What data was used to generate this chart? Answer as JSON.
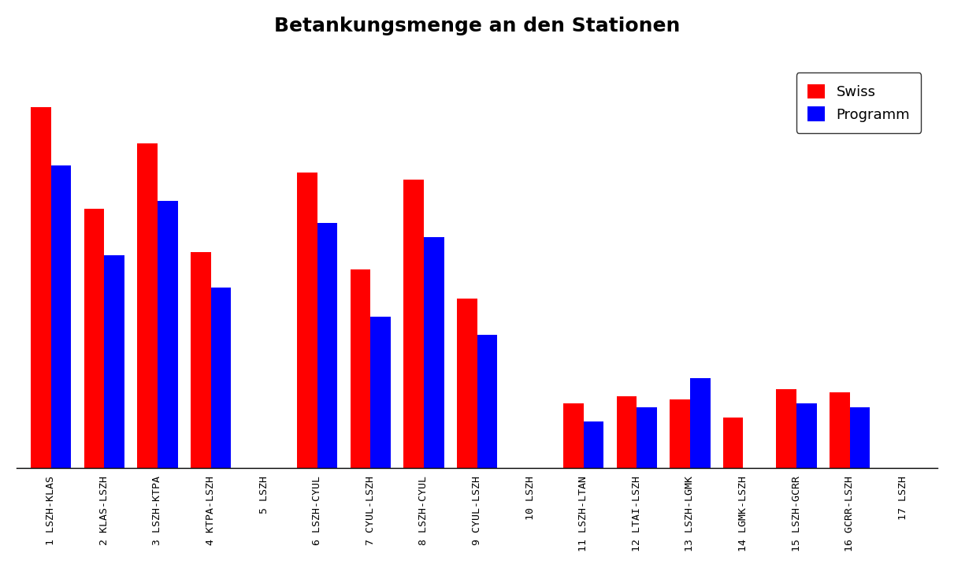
{
  "title": "Betankungsmenge an den Stationen",
  "categories": [
    "1 LSZH-KLAS",
    "2 KLAS-LSZH",
    "3 LSZH-KTPA",
    "4 KTPA-LSZH",
    "5 LSZH",
    "6 LSZH-CYUL",
    "7 CYUL-LSZH",
    "8 LSZH-CYUL",
    "9 CYUL-LSZH",
    "10 LSZH",
    "11 LSZH-LTAN",
    "12 LTAI-LSZH",
    "13 LSZH-LGMK",
    "14 LGMK-LSZH",
    "15 LSZH-GCRR",
    "16 GCRR-LSZH",
    "17 LSZH"
  ],
  "swiss": [
    100,
    72,
    90,
    60,
    0,
    82,
    55,
    80,
    47,
    0,
    18,
    20,
    19,
    14,
    22,
    21,
    0
  ],
  "programm": [
    84,
    59,
    74,
    50,
    0,
    68,
    42,
    64,
    37,
    0,
    13,
    17,
    25,
    0,
    18,
    17,
    0
  ],
  "swiss_color": "#ff0000",
  "programm_color": "#0000ff",
  "bar_width": 0.38,
  "legend_labels": [
    "Swiss",
    "Programm"
  ],
  "background_color": "#ffffff",
  "title_fontsize": 18,
  "tick_fontsize": 9.5,
  "ylim_max": 115,
  "xlim_left": -0.65
}
